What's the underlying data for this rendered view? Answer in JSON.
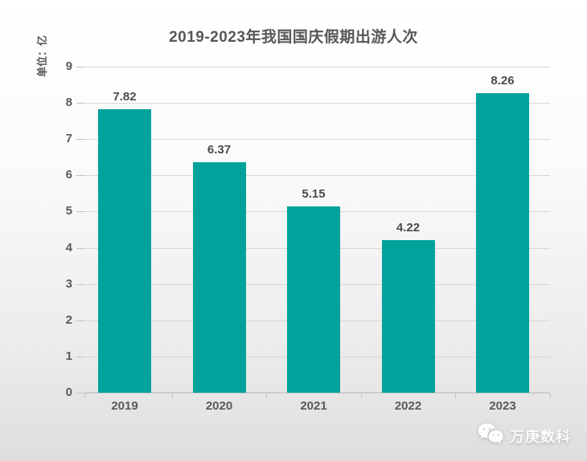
{
  "page": {
    "title": "2019-2023年我国国庆假期出游人次"
  },
  "chart_data": {
    "type": "bar",
    "title": "2019-2023年我国国庆假期出游人次",
    "categories": [
      "2019",
      "2020",
      "2021",
      "2022",
      "2023"
    ],
    "values": [
      7.82,
      6.37,
      5.15,
      4.22,
      8.26
    ],
    "data_labels": [
      "7.82",
      "6.37",
      "5.15",
      "4.22",
      "8.26"
    ],
    "xlabel": "",
    "ylabel": "单位：亿",
    "ylim": [
      0,
      9
    ],
    "yticks": [
      0,
      1,
      2,
      3,
      4,
      5,
      6,
      7,
      8,
      9
    ],
    "grid": true,
    "legend": "none",
    "bar_color": "#00A29B"
  },
  "watermark": {
    "icon": "wechat-icon",
    "text": "万庚数科"
  },
  "colors": {
    "bar": "#00A29B",
    "title_text": "#56575A",
    "tick_text": "#5A5A5C",
    "value_text": "#4B4B4D",
    "grid": "#D7D7D7",
    "axis": "#CDCDCD",
    "background_top": "#FFFFFF",
    "background_bottom": "#DEDEDE",
    "watermark_text": "#FDFDFD"
  }
}
